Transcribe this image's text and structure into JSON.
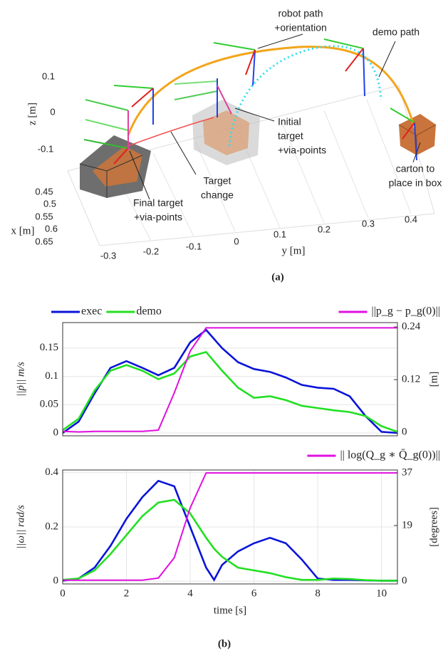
{
  "figure_a": {
    "annotations": [
      {
        "lines": [
          "robot path",
          "+orientation"
        ]
      },
      {
        "lines": [
          "demo path"
        ]
      },
      {
        "lines": [
          "Initial",
          "target",
          "+via-points"
        ]
      },
      {
        "lines": [
          "Target",
          "change"
        ]
      },
      {
        "lines": [
          "Final target",
          "+via-points"
        ]
      },
      {
        "lines": [
          "carton to",
          "place in box"
        ]
      }
    ],
    "z_label": "z [m]",
    "x_label": "x [m]",
    "y_label": "y [m]",
    "z_ticks": [
      "0.1",
      "0",
      "-0.1"
    ],
    "x_ticks": [
      "0.45",
      "0.5",
      "0.55",
      "0.6",
      "0.65"
    ],
    "y_ticks": [
      "-0.3",
      "-0.2",
      "-0.1",
      "0",
      "0.1",
      "0.2",
      "0.3",
      "0.4"
    ],
    "caption": "(a)"
  },
  "caption_b": "(b)",
  "chart_data": [
    {
      "type": "line",
      "x": [
        0,
        0.5,
        1,
        1.5,
        2,
        2.5,
        3,
        3.5,
        4,
        4.5,
        5,
        5.5,
        6,
        6.5,
        7,
        7.5,
        8,
        8.5,
        9,
        9.5,
        10,
        10.5
      ],
      "series": [
        {
          "name": "exec",
          "color": "#0a14d8",
          "values": [
            0,
            0.02,
            0.07,
            0.115,
            0.127,
            0.115,
            0.102,
            0.115,
            0.16,
            0.182,
            0.15,
            0.125,
            0.113,
            0.108,
            0.098,
            0.085,
            0.08,
            0.078,
            0.065,
            0.03,
            0.002,
            0
          ]
        },
        {
          "name": "demo",
          "color": "#22e022",
          "values": [
            0.005,
            0.025,
            0.075,
            0.11,
            0.12,
            0.11,
            0.095,
            0.105,
            0.135,
            0.143,
            0.11,
            0.08,
            0.062,
            0.065,
            0.058,
            0.048,
            0.044,
            0.04,
            0.037,
            0.03,
            0.012,
            0.002
          ]
        },
        {
          "name": "||p_g − p_g(0)||",
          "color": "#e010e0",
          "axis": "y2",
          "values": [
            0.002,
            0.001,
            0.002,
            0.002,
            0.002,
            0.002,
            0.005,
            0.09,
            0.185,
            0.238,
            0.238,
            0.238,
            0.238,
            0.238,
            0.238,
            0.238,
            0.238,
            0.238,
            0.238,
            0.238,
            0.238,
            0.238
          ]
        }
      ],
      "y_label": "||ṗ|| m/s",
      "y2_label": "[m]",
      "xlim": [
        0,
        10.5
      ],
      "ylim": [
        -0.005,
        0.195
      ],
      "yticks": [
        0,
        0.05,
        0.1,
        0.15
      ],
      "y2lim": [
        -0.008,
        0.25
      ],
      "y2ticks": [
        0,
        0.12,
        0.24
      ],
      "grid": true
    },
    {
      "type": "line",
      "x": [
        0,
        0.5,
        1,
        1.5,
        2,
        2.5,
        3,
        3.5,
        4,
        4.5,
        4.75,
        5,
        5.5,
        6,
        6.5,
        7,
        7.5,
        8,
        8.5,
        9,
        9.5,
        10,
        10.5
      ],
      "series": [
        {
          "color": "#0a14d8",
          "values": [
            0.002,
            0.01,
            0.05,
            0.13,
            0.23,
            0.31,
            0.37,
            0.35,
            0.2,
            0.05,
            0.005,
            0.06,
            0.11,
            0.14,
            0.16,
            0.14,
            0.08,
            0.01,
            0.005,
            0.005,
            0.003,
            0.002,
            0.002
          ]
        },
        {
          "color": "#22e022",
          "values": [
            0.005,
            0.01,
            0.04,
            0.1,
            0.17,
            0.24,
            0.29,
            0.3,
            0.25,
            0.16,
            0.12,
            0.09,
            0.05,
            0.04,
            0.03,
            0.015,
            0.005,
            0.005,
            0.01,
            0.008,
            0.004,
            0.002,
            0.002
          ]
        },
        {
          "name": "|| log(Q_g ∗ Q̄_g(0))||",
          "color": "#e010e0",
          "axis": "y2",
          "values": [
            0.3,
            0.3,
            0.3,
            0.3,
            0.3,
            0.3,
            1,
            8,
            25,
            37,
            37,
            37,
            37,
            37,
            37,
            37,
            37,
            37,
            37,
            37,
            37,
            37,
            37
          ]
        }
      ],
      "x_label": "time [s]",
      "y_label": "||ω|| rad/s",
      "y2_label": "[degrees]",
      "xlim": [
        0,
        10.5
      ],
      "xticks": [
        0,
        2,
        4,
        6,
        8,
        10
      ],
      "ylim": [
        -0.01,
        0.41
      ],
      "yticks": [
        0,
        0.2,
        0.4
      ],
      "y2lim": [
        -1,
        38
      ],
      "y2ticks": [
        0,
        19,
        37
      ],
      "grid": true
    }
  ]
}
